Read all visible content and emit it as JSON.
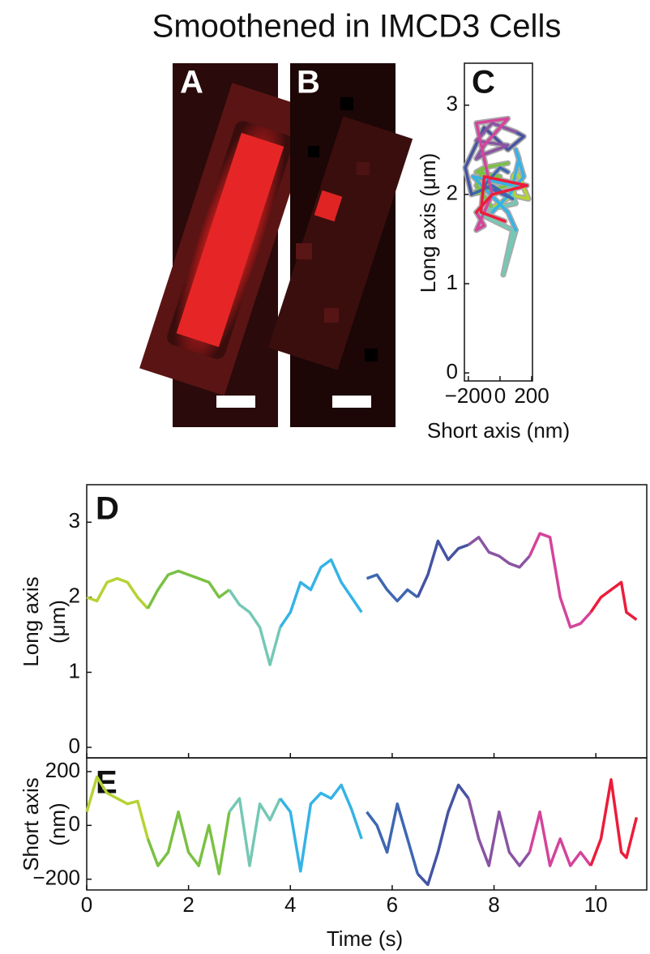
{
  "title": "Smoothened in IMCD3 Cells",
  "images": [
    {
      "label": "A"
    },
    {
      "label": "B"
    }
  ],
  "chart_data": [
    {
      "type": "trajectory",
      "label": "C",
      "xlabel": "Short axis (nm)",
      "ylabel": "Long axis (μm)",
      "xlim": [
        -225,
        205
      ],
      "ylim": [
        -0.09,
        3.47
      ],
      "xticks": [
        {
          "value": -200,
          "label": "−200"
        },
        0,
        200
      ],
      "yticks": [
        0,
        1,
        2,
        3
      ]
    },
    {
      "type": "line",
      "label": "D",
      "ylabel": [
        "Long axis",
        "(μm)"
      ],
      "xlim": [
        0,
        11
      ],
      "ylim": [
        -0.14,
        3.5
      ],
      "yticks": [
        0,
        1,
        2,
        3
      ],
      "series": [
        {
          "color": "#b5d334",
          "x": [
            0,
            0.2,
            0.4,
            0.6,
            0.8,
            1.0,
            1.2
          ],
          "values": [
            2.0,
            1.95,
            2.2,
            2.25,
            2.2,
            2.0,
            1.85
          ]
        },
        {
          "color": "#7ac143",
          "x": [
            1.2,
            1.4,
            1.6,
            1.8,
            2.0,
            2.2,
            2.4,
            2.6,
            2.8
          ],
          "values": [
            1.85,
            2.1,
            2.3,
            2.35,
            2.3,
            2.25,
            2.2,
            2.0,
            2.1
          ]
        },
        {
          "color": "#74c8b4",
          "x": [
            2.8,
            3.0,
            3.2,
            3.4,
            3.6,
            3.8
          ],
          "values": [
            2.1,
            1.9,
            1.8,
            1.6,
            1.1,
            1.6
          ]
        },
        {
          "color": "#35b3e6",
          "x": [
            3.8,
            4.0,
            4.2,
            4.4,
            4.6,
            4.8,
            5.0,
            5.2,
            5.4
          ],
          "values": [
            1.6,
            1.8,
            2.2,
            2.1,
            2.4,
            2.5,
            2.2,
            2.0,
            1.8
          ]
        },
        {
          "color": "#3e67b1",
          "x": [
            5.5,
            5.7,
            5.9,
            6.1,
            6.3,
            6.5
          ],
          "values": [
            2.25,
            2.3,
            2.1,
            1.95,
            2.1,
            2.0
          ]
        },
        {
          "color": "#4553a3",
          "x": [
            6.5,
            6.7,
            6.9,
            7.1,
            7.3,
            7.5
          ],
          "values": [
            2.0,
            2.3,
            2.75,
            2.5,
            2.65,
            2.7
          ]
        },
        {
          "color": "#8a54a2",
          "x": [
            7.5,
            7.7,
            7.9,
            8.1,
            8.3,
            8.5,
            8.7
          ],
          "values": [
            2.7,
            2.8,
            2.6,
            2.55,
            2.45,
            2.4,
            2.55
          ]
        },
        {
          "color": "#d4449b",
          "x": [
            8.7,
            8.9,
            9.1,
            9.3,
            9.5,
            9.7,
            9.9
          ],
          "values": [
            2.55,
            2.85,
            2.8,
            2.0,
            1.6,
            1.65,
            1.8
          ]
        },
        {
          "color": "#ec1c3a",
          "x": [
            9.9,
            10.1,
            10.3,
            10.5,
            10.6,
            10.8
          ],
          "values": [
            1.8,
            2.0,
            2.1,
            2.2,
            1.8,
            1.7
          ]
        }
      ]
    },
    {
      "type": "line",
      "label": "E",
      "ylabel": [
        "Short axis",
        "(nm)"
      ],
      "xlabel": "Time (s)",
      "xlim": [
        0,
        11
      ],
      "ylim": [
        -240,
        251
      ],
      "xticks": [
        0,
        2,
        4,
        6,
        8,
        10
      ],
      "yticks": [
        {
          "value": -200,
          "label": "−200"
        },
        0,
        200
      ],
      "series": [
        {
          "color": "#b5d334",
          "values": [
            50,
            180,
            120,
            100,
            80,
            90,
            -50
          ]
        },
        {
          "color": "#7ac143",
          "values": [
            -50,
            -150,
            -100,
            50,
            -100,
            -150,
            0,
            -180,
            50
          ]
        },
        {
          "color": "#74c8b4",
          "values": [
            50,
            100,
            -150,
            80,
            20,
            100
          ]
        },
        {
          "color": "#35b3e6",
          "values": [
            100,
            50,
            -170,
            80,
            120,
            100,
            150,
            60,
            -50
          ]
        },
        {
          "color": "#3e67b1",
          "values": [
            50,
            0,
            -100,
            80,
            -50,
            -180
          ]
        },
        {
          "color": "#4553a3",
          "values": [
            -180,
            -220,
            -100,
            50,
            150,
            100
          ]
        },
        {
          "color": "#8a54a2",
          "values": [
            100,
            -50,
            -150,
            50,
            -100,
            -150,
            -100
          ]
        },
        {
          "color": "#d4449b",
          "values": [
            -100,
            50,
            -150,
            -50,
            -150,
            -100,
            -150
          ]
        },
        {
          "color": "#ec1c3a",
          "values": [
            -150,
            -50,
            170,
            -100,
            -120,
            30
          ]
        }
      ]
    }
  ]
}
